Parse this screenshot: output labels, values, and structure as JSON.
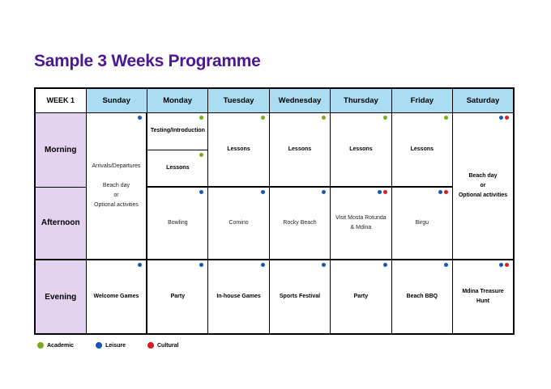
{
  "page": {
    "title": "Sample 3 Weeks Programme"
  },
  "colors": {
    "title_color": "#4D1792",
    "header_bg": "#AADDF2",
    "rowlabel_bg": "#E3D2F0",
    "academic": "#7CA81D",
    "leisure": "#1656B8",
    "cultural": "#D91E1E"
  },
  "table": {
    "week_label": "WEEK 1",
    "days": [
      "Sunday",
      "Monday",
      "Tuesday",
      "Wednesday",
      "Thursday",
      "Friday",
      "Saturday"
    ],
    "row_labels": {
      "morning": "Morning",
      "afternoon": "Afternoon",
      "evening": "Evening"
    },
    "cells": {
      "sunday_block": {
        "text": "Arrivals/Departures\n\nBeach day\nor\nOptional activities",
        "dots": [
          "leisure"
        ]
      },
      "monday_testing": {
        "text": "Testing/Introduction",
        "dots": [
          "academic"
        ]
      },
      "monday_lessons": {
        "text": "Lessons",
        "dots": [
          "academic"
        ]
      },
      "tuesday_lessons": {
        "text": "Lessons",
        "dots": [
          "academic"
        ]
      },
      "wednesday_lessons": {
        "text": "Lessons",
        "dots": [
          "academic"
        ]
      },
      "thursday_lessons": {
        "text": "Lessons",
        "dots": [
          "academic"
        ]
      },
      "friday_lessons": {
        "text": "Lessons",
        "dots": [
          "academic"
        ]
      },
      "saturday_block": {
        "text": "Beach day\nor\nOptional activities",
        "dots": [
          "leisure",
          "cultural"
        ]
      },
      "monday_afternoon": {
        "text": "Bowling",
        "dots": [
          "leisure"
        ]
      },
      "tuesday_afternoon": {
        "text": "Comino",
        "dots": [
          "leisure"
        ]
      },
      "wednesday_afternoon": {
        "text": "Rocky Beach",
        "dots": [
          "leisure"
        ]
      },
      "thursday_afternoon": {
        "text": "Visit Mosta Rotunda & Mdina",
        "dots": [
          "leisure",
          "cultural"
        ]
      },
      "friday_afternoon": {
        "text": "Birgu",
        "dots": [
          "leisure",
          "cultural"
        ]
      },
      "sunday_evening": {
        "text": "Welcome Games",
        "dots": [
          "leisure"
        ]
      },
      "monday_evening": {
        "text": "Party",
        "dots": [
          "leisure"
        ]
      },
      "tuesday_evening": {
        "text": "In-house Games",
        "dots": [
          "leisure"
        ]
      },
      "wednesday_evening": {
        "text": "Sports Festival",
        "dots": [
          "leisure"
        ]
      },
      "thursday_evening": {
        "text": "Party",
        "dots": [
          "leisure"
        ]
      },
      "friday_evening": {
        "text": "Beach BBQ",
        "dots": [
          "leisure"
        ]
      },
      "saturday_evening": {
        "text": "Mdina Treasure Hunt",
        "dots": [
          "leisure",
          "cultural"
        ]
      }
    }
  },
  "legend": {
    "items": [
      {
        "key": "academic",
        "label": "Academic"
      },
      {
        "key": "leisure",
        "label": "Leisure"
      },
      {
        "key": "cultural",
        "label": "Cultural"
      }
    ]
  }
}
